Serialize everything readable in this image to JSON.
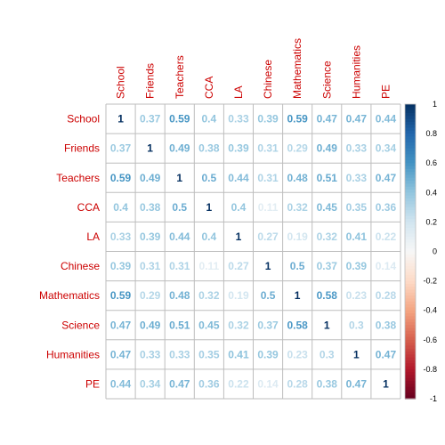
{
  "chart_data": {
    "type": "heatmap",
    "title": "",
    "variables": [
      "School",
      "Friends",
      "Teachers",
      "CCA",
      "LA",
      "Chinese",
      "Mathematics",
      "Science",
      "Humanities",
      "PE"
    ],
    "matrix": [
      [
        1,
        0.37,
        0.59,
        0.4,
        0.33,
        0.39,
        0.59,
        0.47,
        0.47,
        0.44
      ],
      [
        0.37,
        1,
        0.49,
        0.38,
        0.39,
        0.31,
        0.29,
        0.49,
        0.33,
        0.34
      ],
      [
        0.59,
        0.49,
        1,
        0.5,
        0.44,
        0.31,
        0.48,
        0.51,
        0.33,
        0.47
      ],
      [
        0.4,
        0.38,
        0.5,
        1,
        0.4,
        0.11,
        0.32,
        0.45,
        0.35,
        0.36
      ],
      [
        0.33,
        0.39,
        0.44,
        0.4,
        1,
        0.27,
        0.19,
        0.32,
        0.41,
        0.22
      ],
      [
        0.39,
        0.31,
        0.31,
        0.11,
        0.27,
        1,
        0.5,
        0.37,
        0.39,
        0.14
      ],
      [
        0.59,
        0.29,
        0.48,
        0.32,
        0.19,
        0.5,
        1,
        0.58,
        0.23,
        0.28
      ],
      [
        0.47,
        0.49,
        0.51,
        0.45,
        0.32,
        0.37,
        0.58,
        1,
        0.3,
        0.38
      ],
      [
        0.47,
        0.33,
        0.33,
        0.35,
        0.41,
        0.39,
        0.23,
        0.3,
        1,
        0.47
      ],
      [
        0.44,
        0.34,
        0.47,
        0.36,
        0.22,
        0.14,
        0.28,
        0.38,
        0.47,
        1
      ]
    ],
    "color_scale": {
      "range": [
        -1,
        1
      ],
      "ticks": [
        "-1",
        "-0.8",
        "-0.6",
        "-0.4",
        "-0.2",
        "0",
        "0.2",
        "0.4",
        "0.6",
        "0.8",
        "1"
      ],
      "low_color": "#67001f",
      "mid_color": "#f7f7f7",
      "high_color": "#053061"
    },
    "label_color": "#cc0000",
    "grid": true,
    "legend_placement": "right"
  }
}
